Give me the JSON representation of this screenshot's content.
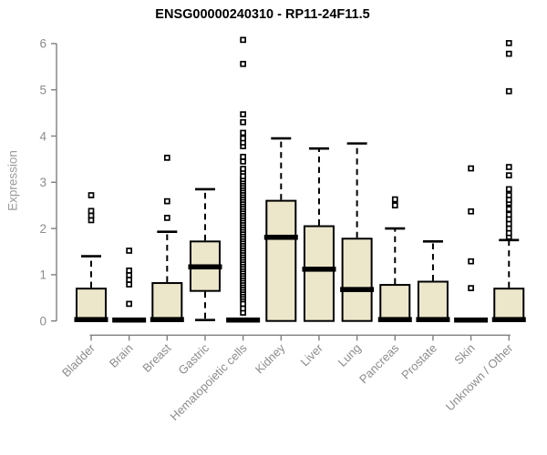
{
  "chart_data": {
    "type": "boxplot",
    "title": "ENSG00000240310 - RP11-24F11.5",
    "ylabel": "Expression",
    "xlabel": "",
    "ylim": [
      0,
      6
    ],
    "y_ticks": [
      0,
      1,
      2,
      3,
      4,
      5,
      6
    ],
    "grid": false,
    "legend": "none",
    "categories": [
      "Bladder",
      "Brain",
      "Breast",
      "Gastric",
      "Hematopoietic cells",
      "Kidney",
      "Liver",
      "Lung",
      "Pancreas",
      "Prostate",
      "Skin",
      "Unknown / Other"
    ],
    "series": [
      {
        "category": "Bladder",
        "q1": 0,
        "median": 0.03,
        "q3": 0.7,
        "whisker_low": 0,
        "whisker_high": 1.4,
        "outliers": [
          2.18,
          2.28,
          2.38,
          2.72
        ]
      },
      {
        "category": "Brain",
        "q1": 0,
        "median": 0.02,
        "q3": 0.02,
        "whisker_low": 0,
        "whisker_high": 0.02,
        "outliers": [
          0.37,
          0.79,
          0.89,
          0.99,
          1.09,
          1.52
        ]
      },
      {
        "category": "Breast",
        "q1": 0,
        "median": 0.03,
        "q3": 0.82,
        "whisker_low": 0,
        "whisker_high": 1.93,
        "outliers": [
          2.23,
          2.59,
          3.53
        ]
      },
      {
        "category": "Gastric",
        "q1": 0.65,
        "median": 1.17,
        "q3": 1.72,
        "whisker_low": 0.02,
        "whisker_high": 2.85,
        "outliers": []
      },
      {
        "category": "Hematopoietic cells",
        "q1": 0,
        "median": 0.02,
        "q3": 0.02,
        "whisker_low": 0,
        "whisker_high": 0.02,
        "outliers": [
          0.18,
          0.27,
          0.37,
          0.47,
          0.52,
          0.57,
          0.62,
          0.67,
          0.72,
          0.77,
          0.82,
          0.87,
          0.92,
          0.97,
          1.02,
          1.07,
          1.12,
          1.17,
          1.22,
          1.27,
          1.32,
          1.37,
          1.42,
          1.47,
          1.52,
          1.57,
          1.62,
          1.67,
          1.72,
          1.77,
          1.82,
          1.87,
          1.92,
          1.97,
          2.02,
          2.07,
          2.12,
          2.17,
          2.22,
          2.27,
          2.32,
          2.37,
          2.42,
          2.47,
          2.52,
          2.57,
          2.62,
          2.67,
          2.72,
          2.77,
          2.82,
          2.87,
          2.92,
          2.97,
          3.02,
          3.07,
          3.13,
          3.23,
          3.29,
          3.45,
          3.55,
          3.78,
          3.86,
          3.95,
          4.07,
          4.3,
          4.47,
          5.56,
          6.08
        ]
      },
      {
        "category": "Kidney",
        "q1": 0,
        "median": 1.81,
        "q3": 2.6,
        "whisker_low": 0,
        "whisker_high": 3.95,
        "outliers": []
      },
      {
        "category": "Liver",
        "q1": 0,
        "median": 1.12,
        "q3": 2.05,
        "whisker_low": 0,
        "whisker_high": 3.73,
        "outliers": []
      },
      {
        "category": "Lung",
        "q1": 0,
        "median": 0.68,
        "q3": 1.78,
        "whisker_low": 0,
        "whisker_high": 3.84,
        "outliers": []
      },
      {
        "category": "Pancreas",
        "q1": 0,
        "median": 0.03,
        "q3": 0.78,
        "whisker_low": 0,
        "whisker_high": 2.0,
        "outliers": [
          2.5,
          2.63
        ]
      },
      {
        "category": "Prostate",
        "q1": 0,
        "median": 0.03,
        "q3": 0.85,
        "whisker_low": 0,
        "whisker_high": 1.72,
        "outliers": []
      },
      {
        "category": "Skin",
        "q1": 0,
        "median": 0.02,
        "q3": 0.02,
        "whisker_low": 0,
        "whisker_high": 0.02,
        "outliers": [
          0.71,
          1.29,
          2.37,
          3.3
        ]
      },
      {
        "category": "Unknown / Other",
        "q1": 0,
        "median": 0.03,
        "q3": 0.7,
        "whisker_low": 0,
        "whisker_high": 1.75,
        "outliers": [
          1.82,
          1.9,
          2.0,
          2.1,
          2.2,
          2.3,
          2.42,
          2.55,
          2.62,
          2.72,
          2.85,
          3.15,
          3.33,
          4.97,
          5.78,
          6.01
        ]
      }
    ],
    "colors": {
      "box_fill": "#ece7cb",
      "box_border": "#000000",
      "median": "#000000",
      "whisker": "#000000",
      "outlier_stroke": "#000000",
      "outlier_fill": "#ffffff",
      "axis": "#7f7f7f",
      "tick_label": "#8c8c8c",
      "title": "#000000",
      "ylabel_color": "#9b9b9b",
      "background": "#ffffff"
    }
  }
}
